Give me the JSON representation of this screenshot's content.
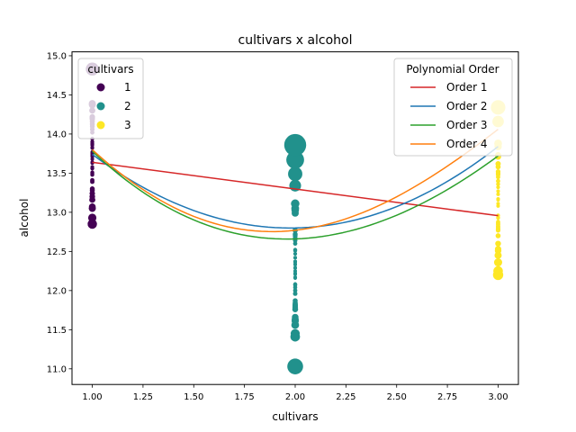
{
  "chart_data": {
    "type": "scatter",
    "title": "cultivars x alcohol",
    "xlabel": "cultivars",
    "ylabel": "alcohol",
    "xlim": [
      0.9,
      3.1
    ],
    "ylim": [
      10.8,
      15.05
    ],
    "xticks": [
      "1.00",
      "1.25",
      "1.50",
      "1.75",
      "2.00",
      "2.25",
      "2.50",
      "2.75",
      "3.00"
    ],
    "yticks": [
      "11.0",
      "11.5",
      "12.0",
      "12.5",
      "13.0",
      "13.5",
      "14.0",
      "14.5",
      "15.0"
    ],
    "grid": false,
    "scatter_legend": {
      "title": "cultivars",
      "placement": "top-left",
      "entries": [
        {
          "label": "1",
          "color": "#440154"
        },
        {
          "label": "2",
          "color": "#21918c"
        },
        {
          "label": "3",
          "color": "#fde725"
        }
      ]
    },
    "scatter_groups": [
      {
        "x": 1,
        "color": "#440154",
        "y": [
          14.83,
          14.39,
          14.38,
          14.37,
          14.3,
          14.22,
          14.21,
          14.2,
          14.19,
          14.16,
          14.13,
          14.12,
          14.1,
          14.1,
          14.06,
          14.06,
          14.02,
          13.94,
          13.9,
          13.88,
          13.87,
          13.86,
          13.83,
          13.82,
          13.77,
          13.76,
          13.75,
          13.74,
          13.73,
          13.72,
          13.71,
          13.68,
          13.64,
          13.63,
          13.58,
          13.56,
          13.56,
          13.51,
          13.5,
          13.48,
          13.41,
          13.39,
          13.3,
          13.28,
          13.24,
          13.24,
          13.2,
          13.16,
          13.16,
          13.07,
          13.05,
          13.05,
          12.93,
          12.85,
          12.85
        ]
      },
      {
        "x": 2,
        "color": "#21918c",
        "y": [
          13.86,
          13.67,
          13.49,
          13.34,
          13.11,
          13.05,
          13.03,
          12.99,
          12.77,
          12.72,
          12.7,
          12.67,
          12.64,
          12.6,
          12.52,
          12.51,
          12.47,
          12.42,
          12.37,
          12.37,
          12.37,
          12.34,
          12.33,
          12.29,
          12.29,
          12.25,
          12.22,
          12.21,
          12.17,
          12.16,
          12.08,
          12.08,
          12.07,
          12.04,
          12.0,
          11.96,
          11.87,
          11.84,
          11.82,
          11.81,
          11.79,
          11.76,
          11.66,
          11.64,
          11.62,
          11.61,
          11.56,
          11.45,
          11.41,
          11.03
        ]
      },
      {
        "x": 3,
        "color": "#fde725",
        "y": [
          14.34,
          14.16,
          13.88,
          13.84,
          13.73,
          13.71,
          13.62,
          13.58,
          13.52,
          13.5,
          13.49,
          13.48,
          13.45,
          13.4,
          13.4,
          13.36,
          13.32,
          13.27,
          13.23,
          13.17,
          13.17,
          13.16,
          13.11,
          13.08,
          12.96,
          12.93,
          12.88,
          12.87,
          12.86,
          12.85,
          12.84,
          12.82,
          12.81,
          12.79,
          12.77,
          12.7,
          12.6,
          12.53,
          12.51,
          12.45,
          12.36,
          12.25,
          12.2
        ]
      }
    ],
    "series": [
      {
        "name": "Order 1",
        "color": "#d62728",
        "coef": [
          13.98,
          -0.3412
        ]
      },
      {
        "name": "Order 2",
        "color": "#1f77b4",
        "coef": [
          16.66,
          -3.91,
          0.99
        ]
      },
      {
        "name": "Order 3",
        "color": "#2ca02c",
        "coef": [
          17.8,
          -5.71,
          1.81,
          -0.12
        ]
      },
      {
        "name": "Order 4",
        "color": "#ff7f0e",
        "coef": [
          17.27,
          -4.31,
          0.51,
          0.4,
          -0.07
        ]
      }
    ],
    "line_legend": {
      "title": "Polynomial Order",
      "placement": "top-right",
      "entries": [
        "Order 1",
        "Order 2",
        "Order 3",
        "Order 4"
      ]
    }
  }
}
